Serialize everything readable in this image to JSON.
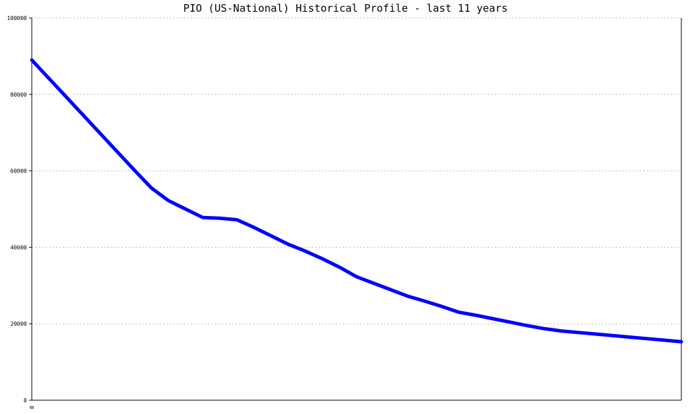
{
  "chart_data": {
    "type": "line",
    "title": "PIO (US-National) Historical Profile - last 11 years",
    "xlabel": "",
    "ylabel": "",
    "x_tick_labels": [
      "0"
    ],
    "y_tick_labels": [
      "0",
      "20000",
      "40000",
      "60000",
      "80000",
      "100000"
    ],
    "ylim": [
      0,
      100000
    ],
    "grid": true,
    "legend": "none",
    "line_color": "#0000ff",
    "series": [
      {
        "values": [
          89000,
          84200,
          79400,
          74600,
          69800,
          65000,
          60200,
          55500,
          52200,
          50000,
          47800,
          47600,
          47200,
          45200,
          43000,
          40800,
          39000,
          37000,
          34800,
          32300,
          30600,
          28900,
          27200,
          25900,
          24500,
          23000,
          22200,
          21300,
          20400,
          19500,
          18700,
          18100,
          17700,
          17300,
          16900,
          16500,
          16100,
          15700,
          15300
        ]
      }
    ]
  }
}
